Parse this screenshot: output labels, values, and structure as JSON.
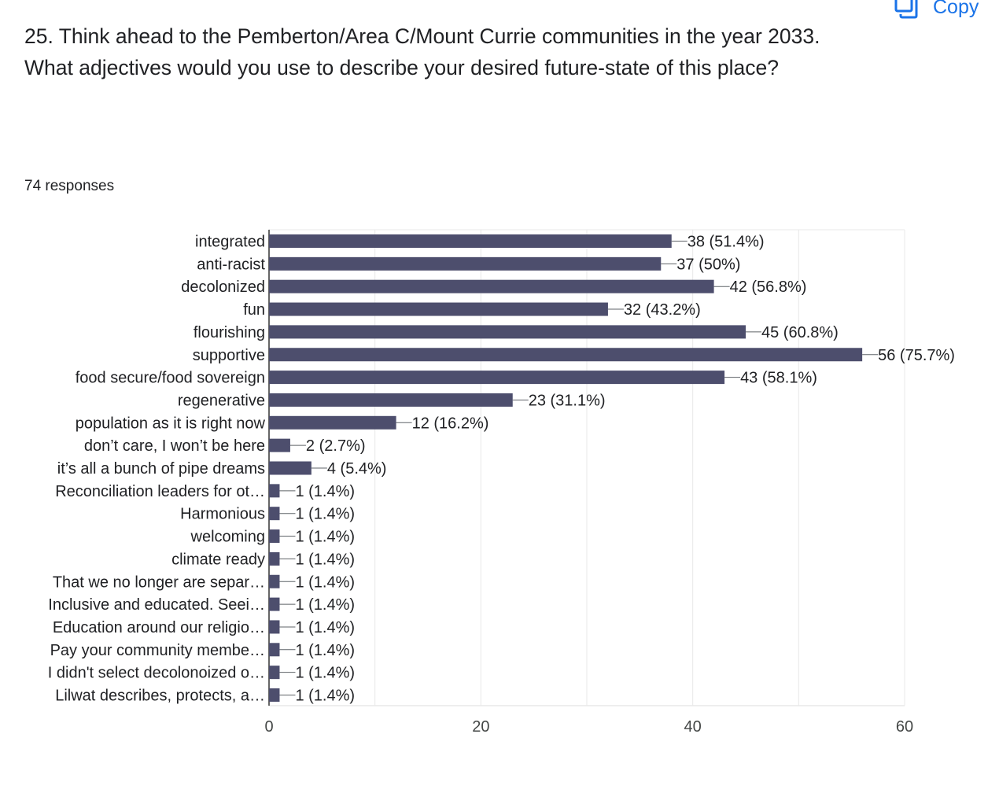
{
  "copy_button": {
    "label": "Copy",
    "icon": "copy-icon"
  },
  "question": {
    "title": "25. Think ahead to the Pemberton/Area C/Mount Currie communities in the year 2033. What adjectives would you use to describe your desired future-state of this place?",
    "responses": "74 responses"
  },
  "colors": {
    "bar": "#4d4e6d",
    "grid": "#e8e8e8",
    "axis": "#333333",
    "accent": "#1a73e8"
  },
  "chart_data": {
    "type": "bar",
    "orientation": "horizontal",
    "categories": [
      "integrated",
      "anti-racist",
      "decolonized",
      "fun",
      "flourishing",
      "supportive",
      "food secure/food sovereign",
      "regenerative",
      "population as it is right now",
      "don’t care, I won’t be here",
      "it’s all a bunch of pipe dreams",
      "Reconciliation leaders for ot…",
      "Harmonious",
      "welcoming",
      "climate ready",
      "That we no longer are separ…",
      "Inclusive and educated. Seei…",
      "Education around our religio…",
      "Pay your community membe…",
      "I didn't select decolonoized o…",
      "Lilwat describes, protects, a…"
    ],
    "values": [
      38,
      37,
      42,
      32,
      45,
      56,
      43,
      23,
      12,
      2,
      4,
      1,
      1,
      1,
      1,
      1,
      1,
      1,
      1,
      1,
      1
    ],
    "labels": [
      "38 (51.4%)",
      "37 (50%)",
      "42 (56.8%)",
      "32 (43.2%)",
      "45 (60.8%)",
      "56 (75.7%)",
      "43 (58.1%)",
      "23 (31.1%)",
      "12 (16.2%)",
      "2 (2.7%)",
      "4 (5.4%)",
      "1 (1.4%)",
      "1 (1.4%)",
      "1 (1.4%)",
      "1 (1.4%)",
      "1 (1.4%)",
      "1 (1.4%)",
      "1 (1.4%)",
      "1 (1.4%)",
      "1 (1.4%)",
      "1 (1.4%)"
    ],
    "x_ticks": [
      0,
      20,
      40,
      60
    ],
    "xlim": [
      0,
      60
    ],
    "grid": true,
    "title": "",
    "xlabel": "",
    "ylabel": ""
  }
}
